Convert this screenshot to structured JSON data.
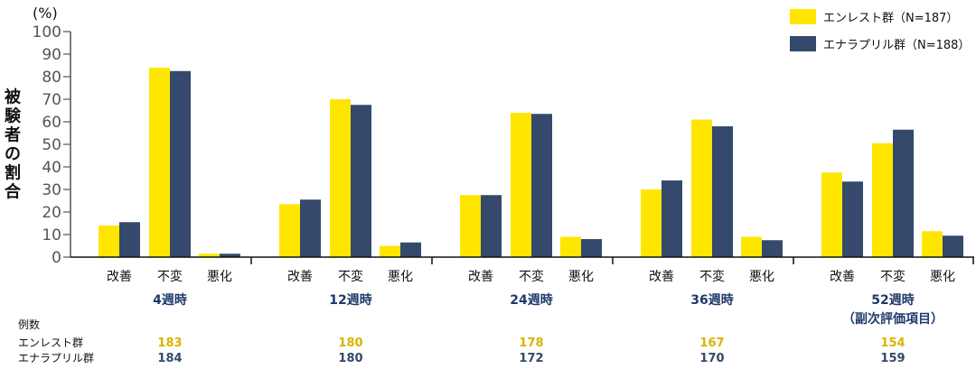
{
  "chart_data": {
    "type": "bar",
    "ylabel": "被験者の割合",
    "yunit": "(%)",
    "ylim": [
      0,
      100
    ],
    "yticks": [
      0,
      10,
      20,
      30,
      40,
      50,
      60,
      70,
      80,
      90,
      100
    ],
    "subcategories": [
      "改善",
      "不変",
      "悪化"
    ],
    "groups": [
      {
        "label": "4週時",
        "label2": ""
      },
      {
        "label": "12週時",
        "label2": ""
      },
      {
        "label": "24週時",
        "label2": ""
      },
      {
        "label": "36週時",
        "label2": ""
      },
      {
        "label": "52週時",
        "label2": "（副次評価項目）"
      }
    ],
    "series": [
      {
        "name": "エンレスト群（N=187）",
        "color": "#FFE600",
        "values": [
          [
            14,
            84,
            1.5
          ],
          [
            23.5,
            70,
            5
          ],
          [
            27.5,
            64,
            9
          ],
          [
            30,
            61,
            9
          ],
          [
            37.5,
            50.5,
            11.5
          ]
        ]
      },
      {
        "name": "エナラプリル群（N=188）",
        "color": "#34496B",
        "values": [
          [
            15.5,
            82.5,
            1.5
          ],
          [
            25.5,
            67.5,
            6.5
          ],
          [
            27.5,
            63.5,
            8
          ],
          [
            34,
            58,
            7.5
          ],
          [
            33.5,
            56.5,
            9.5
          ]
        ]
      }
    ],
    "counts": {
      "header": "例数",
      "rows": [
        {
          "label": "エンレスト群",
          "values": [
            "183",
            "180",
            "178",
            "167",
            "154"
          ]
        },
        {
          "label": "エナラプリル群",
          "values": [
            "184",
            "180",
            "172",
            "170",
            "159"
          ]
        }
      ]
    }
  }
}
